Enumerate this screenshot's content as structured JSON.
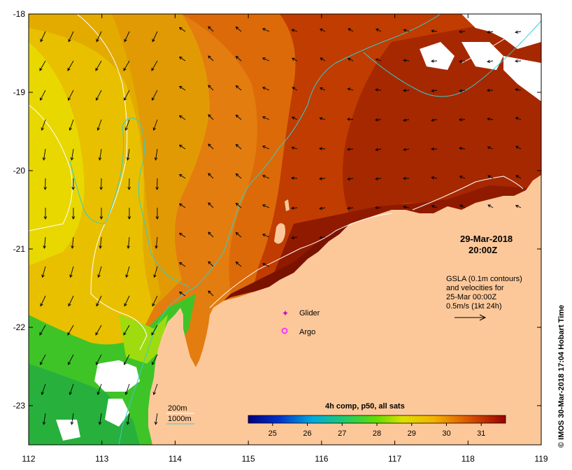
{
  "map": {
    "lon_ticks": [
      "112",
      "113",
      "114",
      "115",
      "116",
      "117",
      "118",
      "119"
    ],
    "lat_ticks": [
      "-18",
      "-19",
      "-20",
      "-21",
      "-22",
      "-23"
    ],
    "lon_range": [
      112,
      119
    ],
    "lat_range": [
      -23.5,
      -18
    ]
  },
  "timestamp": {
    "date": "29-Mar-2018",
    "time": "20:00Z"
  },
  "gsla": {
    "line1": "GSLA (0.1m contours)",
    "line2": "and velocities for",
    "line3": "25-Mar 00:00Z",
    "line4": "0.5m/s (1kt 24h)"
  },
  "legend": {
    "glider": "Glider",
    "argo": "Argo",
    "contour_200": "200m",
    "contour_1000": "1000m",
    "glider_color": "#cc00cc",
    "argo_color": "#ff33ff",
    "color_200": "#ffffff",
    "color_1000": "#33cccc"
  },
  "colorbar": {
    "title": "4h comp, p50, all sats",
    "ticks": [
      "25",
      "26",
      "27",
      "28",
      "29",
      "30",
      "31"
    ],
    "range": [
      24.3,
      31.7
    ]
  },
  "credit": "© IMOS 30-Mar-2018 17:04 Hobart Time",
  "colors": {
    "land": "#fcc89a",
    "warm_red": "#9c1f00",
    "orange": "#e0780c",
    "yellow": "#e6d000",
    "green": "#3ccc28"
  }
}
